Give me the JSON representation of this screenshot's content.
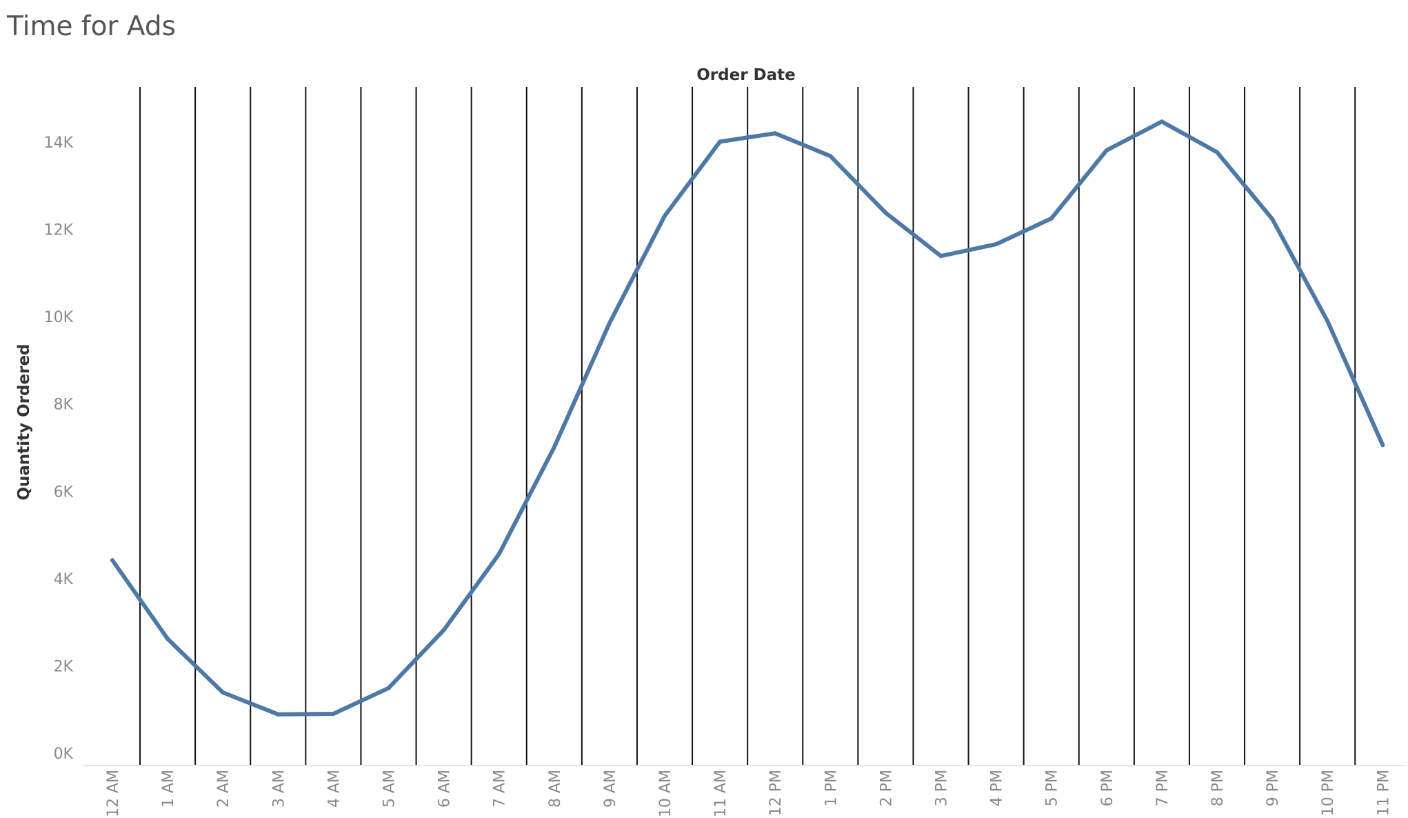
{
  "chart_data": {
    "type": "line",
    "title": "Time for Ads",
    "xlabel": "Order Date",
    "ylabel": "Quantity Ordered",
    "categories": [
      "12 AM",
      "1 AM",
      "2 AM",
      "3 AM",
      "4 AM",
      "5 AM",
      "6 AM",
      "7 AM",
      "8 AM",
      "9 AM",
      "10 AM",
      "11 AM",
      "12 PM",
      "1 PM",
      "2 PM",
      "3 PM",
      "4 PM",
      "5 PM",
      "6 PM",
      "7 PM",
      "8 PM",
      "9 PM",
      "10 PM",
      "11 PM"
    ],
    "values": [
      4420,
      2620,
      1390,
      890,
      900,
      1490,
      2820,
      4560,
      7010,
      9850,
      12310,
      14010,
      14200,
      13680,
      12380,
      11390,
      11660,
      12250,
      13810,
      14470,
      13770,
      12240,
      9900,
      7060
    ],
    "ylim": [
      0,
      15200
    ],
    "yticks": [
      0,
      2000,
      4000,
      6000,
      8000,
      10000,
      12000,
      14000
    ],
    "ytick_labels": [
      "0K",
      "2K",
      "4K",
      "6K",
      "8K",
      "10K",
      "12K",
      "14K"
    ],
    "line_color": "#4e79a7",
    "divider_color": "#111111",
    "grid": false,
    "legend": "none"
  }
}
